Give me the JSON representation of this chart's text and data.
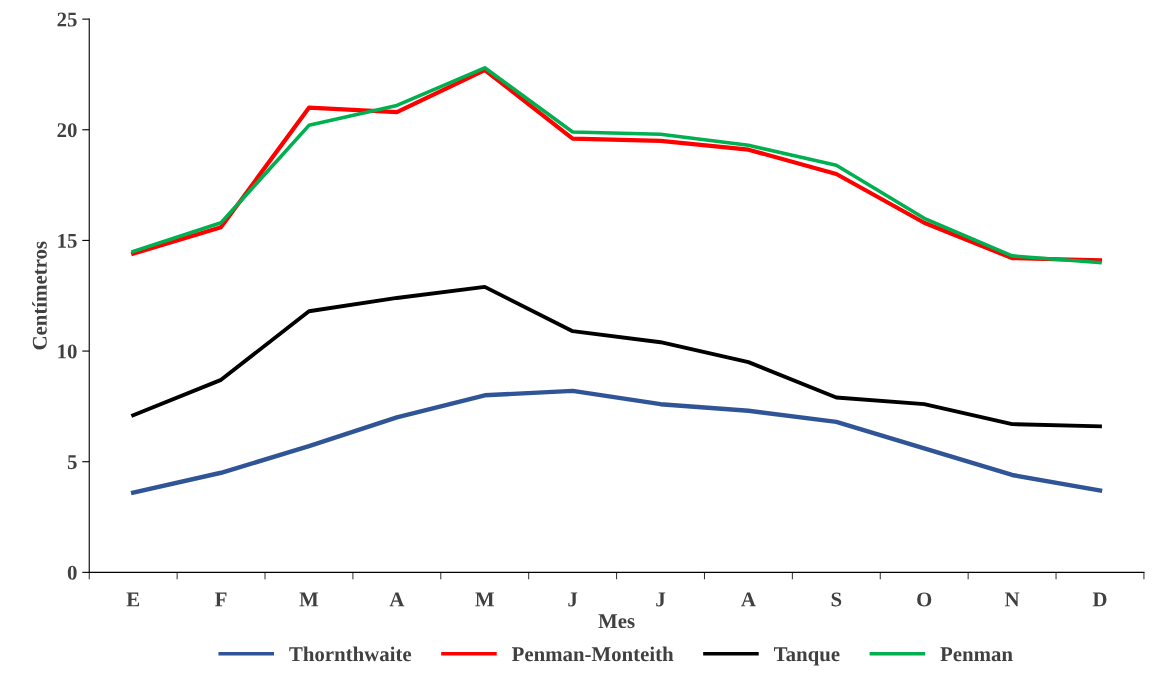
{
  "chart_data": {
    "type": "line",
    "xlabel": "Mes",
    "ylabel": "Centímetros",
    "categories": [
      "E",
      "F",
      "M",
      "A",
      "M",
      "J",
      "J",
      "A",
      "S",
      "O",
      "N",
      "D"
    ],
    "ylim": [
      0,
      25
    ],
    "yticks": [
      0,
      5,
      10,
      15,
      20,
      25
    ],
    "grid": false,
    "legend": "bottom",
    "marker": "none",
    "line_style": "solid",
    "series": [
      {
        "name": "Thornthwaite",
        "color": "#2f5597",
        "values": [
          3.6,
          4.5,
          5.7,
          7.0,
          8.0,
          8.2,
          7.6,
          7.3,
          6.8,
          5.6,
          4.4,
          3.7
        ]
      },
      {
        "name": "Penman-Monteith",
        "color": "#ff0000",
        "values": [
          14.4,
          15.6,
          21.0,
          20.8,
          22.7,
          19.6,
          19.5,
          19.1,
          18.0,
          15.8,
          14.2,
          14.1
        ]
      },
      {
        "name": "Tanque",
        "color": "#000000",
        "values": [
          7.1,
          8.7,
          11.8,
          12.4,
          12.9,
          10.9,
          10.4,
          9.5,
          7.9,
          7.6,
          6.7,
          6.6
        ]
      },
      {
        "name": "Penman",
        "color": "#00b050",
        "values": [
          14.5,
          15.8,
          20.2,
          21.1,
          22.8,
          19.9,
          19.8,
          19.3,
          18.4,
          16.0,
          14.3,
          14.0
        ]
      }
    ]
  }
}
